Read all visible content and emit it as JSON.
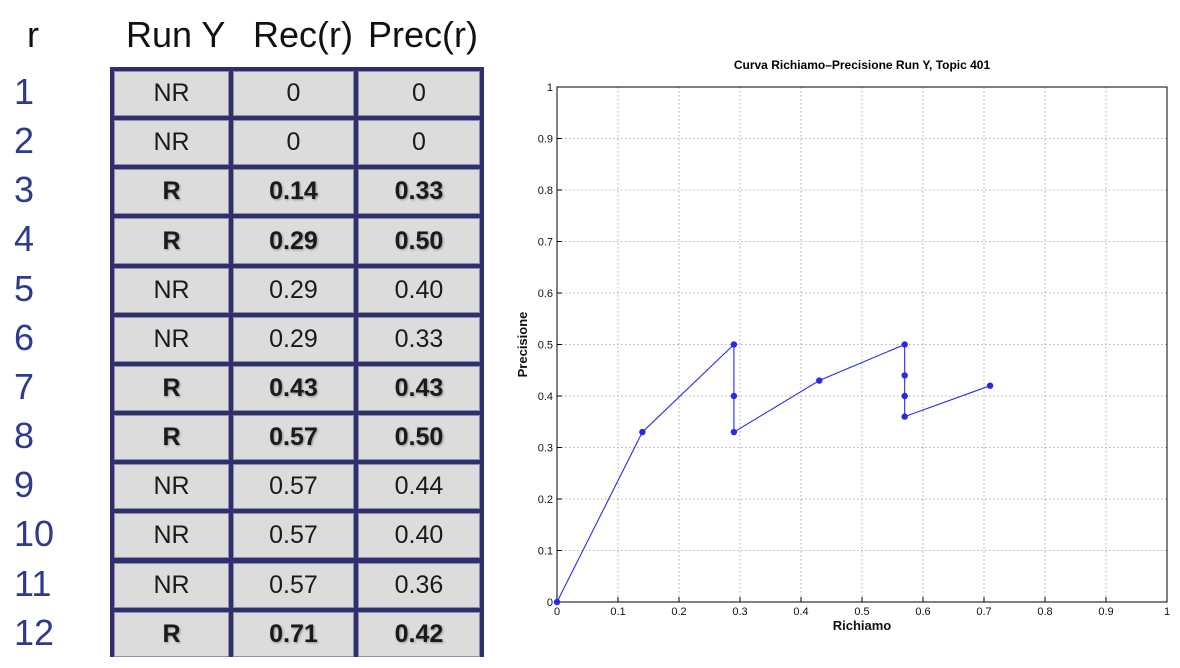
{
  "table": {
    "headers": {
      "r": "r",
      "run": "Run Y",
      "rec": "Rec(r)",
      "prec": "Prec(r)"
    },
    "rows": [
      {
        "r": "1",
        "judgement": "NR",
        "rec": "0",
        "prec": "0",
        "relevant": false
      },
      {
        "r": "2",
        "judgement": "NR",
        "rec": "0",
        "prec": "0",
        "relevant": false
      },
      {
        "r": "3",
        "judgement": "R",
        "rec": "0.14",
        "prec": "0.33",
        "relevant": true
      },
      {
        "r": "4",
        "judgement": "R",
        "rec": "0.29",
        "prec": "0.50",
        "relevant": true
      },
      {
        "r": "5",
        "judgement": "NR",
        "rec": "0.29",
        "prec": "0.40",
        "relevant": false
      },
      {
        "r": "6",
        "judgement": "NR",
        "rec": "0.29",
        "prec": "0.33",
        "relevant": false
      },
      {
        "r": "7",
        "judgement": "R",
        "rec": "0.43",
        "prec": "0.43",
        "relevant": true
      },
      {
        "r": "8",
        "judgement": "R",
        "rec": "0.57",
        "prec": "0.50",
        "relevant": true
      },
      {
        "r": "9",
        "judgement": "NR",
        "rec": "0.57",
        "prec": "0.44",
        "relevant": false
      },
      {
        "r": "10",
        "judgement": "NR",
        "rec": "0.57",
        "prec": "0.40",
        "relevant": false
      },
      {
        "r": "11",
        "judgement": "NR",
        "rec": "0.57",
        "prec": "0.36",
        "relevant": false
      },
      {
        "r": "12",
        "judgement": "R",
        "rec": "0.71",
        "prec": "0.42",
        "relevant": true
      }
    ]
  },
  "chart_data": {
    "type": "line",
    "title": "Curva Richiamo–Precisione Run Y, Topic 401",
    "xlabel": "Richiamo",
    "ylabel": "Precisione",
    "xlim": [
      0,
      1
    ],
    "ylim": [
      0,
      1
    ],
    "grid": true,
    "xticks": [
      "0",
      "0.1",
      "0.2",
      "0.3",
      "0.4",
      "0.5",
      "0.6",
      "0.7",
      "0.8",
      "0.9",
      "1"
    ],
    "yticks": [
      "0",
      "0.1",
      "0.2",
      "0.3",
      "0.4",
      "0.5",
      "0.6",
      "0.7",
      "0.8",
      "0.9",
      "1"
    ],
    "series": [
      {
        "x": [
          0,
          0.14,
          0.29,
          0.29,
          0.29,
          0.43,
          0.57,
          0.57,
          0.57,
          0.57,
          0.71
        ],
        "y": [
          0,
          0.33,
          0.5,
          0.4,
          0.33,
          0.43,
          0.5,
          0.44,
          0.4,
          0.36,
          0.42
        ],
        "color": "#2a2ae6"
      }
    ]
  }
}
